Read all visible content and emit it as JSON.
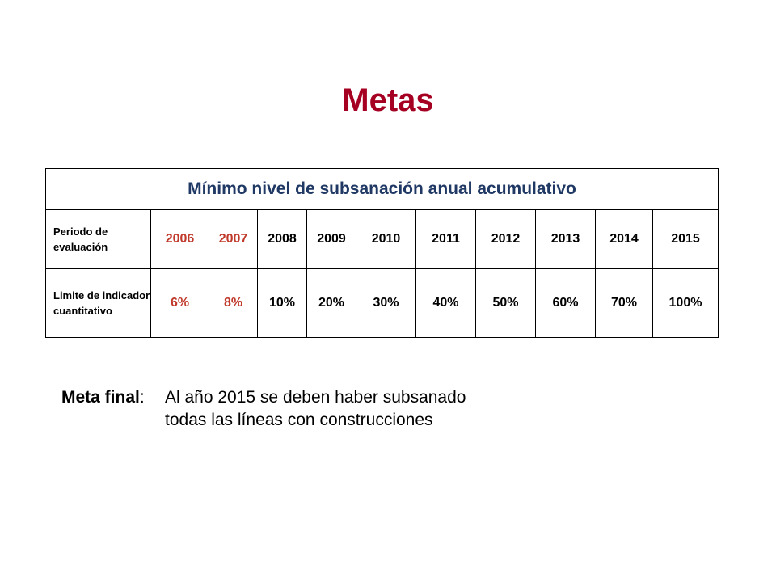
{
  "title": "Metas",
  "table": {
    "heading": "Mínimo nivel de subsanación anual acumulativo",
    "rows": {
      "period": {
        "label": "Periodo de evaluación",
        "values": [
          "2006",
          "2007",
          "2008",
          "2009",
          "2010",
          "2011",
          "2012",
          "2013",
          "2014",
          "2015"
        ]
      },
      "limit": {
        "label": "Limite de indicador cuantitativo",
        "values": [
          "6%",
          "8%",
          "10%",
          "20%",
          "30%",
          "40%",
          "50%",
          "60%",
          "70%",
          "100%"
        ]
      }
    },
    "highlight_color": "#c0392b",
    "heading_color": "#1f3864"
  },
  "final_goal": {
    "label": "Meta final",
    "separator": ":",
    "line1": "Al año 2015 se deben haber subsanado",
    "line2": "todas las líneas con construcciones"
  },
  "colors": {
    "title": "#a50021"
  }
}
